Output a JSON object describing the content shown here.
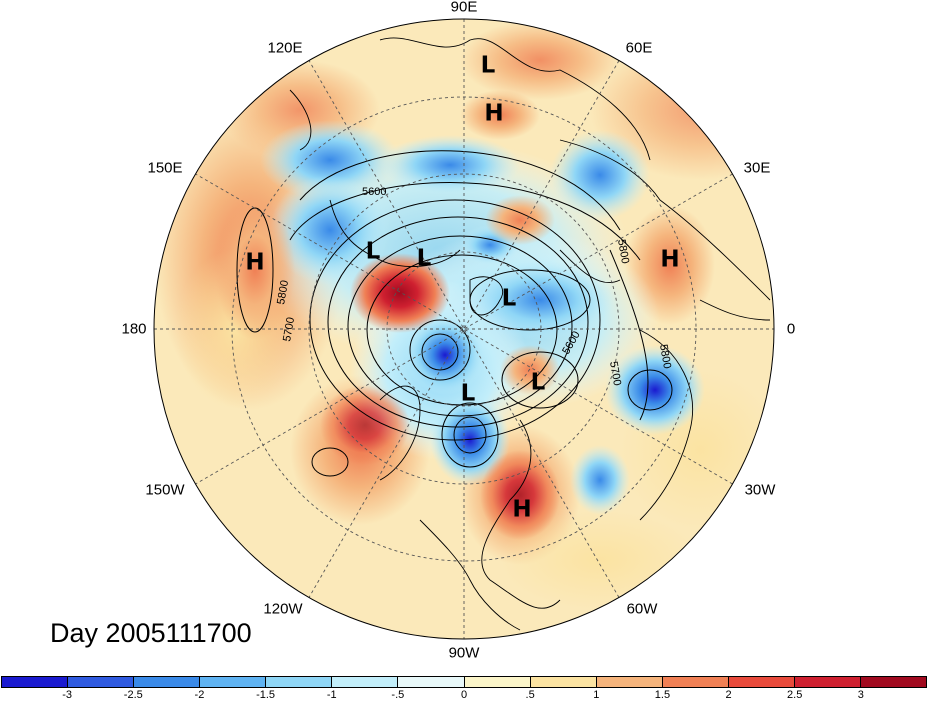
{
  "map": {
    "projection": "north-polar-stereographic",
    "day_label": "Day 2005111700",
    "longitude_labels": [
      {
        "text": "90E",
        "lon": 90
      },
      {
        "text": "60E",
        "lon": 60
      },
      {
        "text": "30E",
        "lon": 30
      },
      {
        "text": "0",
        "lon": 0
      },
      {
        "text": "30W",
        "lon": -30
      },
      {
        "text": "60W",
        "lon": -60
      },
      {
        "text": "90W",
        "lon": -90
      },
      {
        "text": "120W",
        "lon": -120
      },
      {
        "text": "150W",
        "lon": -150
      },
      {
        "text": "180",
        "lon": 180
      },
      {
        "text": "150E",
        "lon": 150
      },
      {
        "text": "120E",
        "lon": 120
      }
    ],
    "pressure_centers": [
      {
        "type": "L",
        "label": "L"
      },
      {
        "type": "H",
        "label": "H"
      },
      {
        "type": "L",
        "label": "L"
      },
      {
        "type": "L",
        "label": "L"
      },
      {
        "type": "H",
        "label": "H"
      },
      {
        "type": "H",
        "label": "H"
      },
      {
        "type": "L",
        "label": "L"
      },
      {
        "type": "L",
        "label": "L"
      },
      {
        "type": "L",
        "label": "L"
      },
      {
        "type": "H",
        "label": "H"
      }
    ],
    "contour_labels": [
      "5600",
      "5700",
      "5800",
      "5800",
      "5600",
      "5700",
      "5800"
    ],
    "colors": {
      "ocean_background": "#fbe9ba",
      "coast_lines": "#000000",
      "grid_lines": "#555555"
    }
  },
  "colorbar": {
    "colors": [
      "#1a1ad0",
      "#2f5ae0",
      "#3a8ae8",
      "#5fb3f2",
      "#8fd6f6",
      "#c2eefa",
      "#e8f8f9",
      "#fbf5c9",
      "#fbe3a2",
      "#f5b47c",
      "#f08055",
      "#e84a3b",
      "#cf2030",
      "#a10a1f"
    ],
    "tick_labels": [
      "-3",
      "-2.5",
      "-2",
      "-1.5",
      "-1",
      "-.5",
      "0",
      ".5",
      "1",
      "1.5",
      "2",
      "2.5",
      "3"
    ]
  }
}
